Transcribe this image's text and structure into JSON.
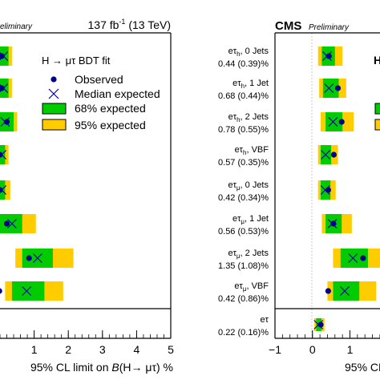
{
  "colors": {
    "band95": "#ffcc00",
    "band68": "#00cc00",
    "observed": "#00008b",
    "median": "#0000aa",
    "frame": "#000000"
  },
  "chart_data": [
    {
      "type": "scatter",
      "header_text": "Preliminary",
      "lumi_text": "137 fb",
      "lumi_sup": "-1",
      "lumi_energy": " (13 TeV)",
      "legend": {
        "title": "H → μτ BDT fit",
        "observed": "Observed",
        "median": "Median expected",
        "band68": "68% expected",
        "band95": "95% expected",
        "position": "top-right"
      },
      "xlabel_prefix": "95% CL limit on ",
      "xlabel_B": "B",
      "xlabel_suffix": "(H→ μτ) %",
      "xlim": [
        -0.4,
        5
      ],
      "ticks": [
        "1",
        "2",
        "3",
        "4",
        "5"
      ],
      "tick_values": [
        1,
        2,
        3,
        4,
        5
      ],
      "series": [
        {
          "observed": 0.05,
          "median": 0.1,
          "band68": [
            -0.1,
            0.25
          ],
          "band95": [
            -0.2,
            0.35
          ]
        },
        {
          "observed": 0.05,
          "median": 0.1,
          "band68": [
            -0.1,
            0.25
          ],
          "band95": [
            -0.2,
            0.35
          ]
        },
        {
          "observed": 0.2,
          "median": 0.15,
          "band68": [
            -0.1,
            0.4
          ],
          "band95": [
            -0.2,
            0.5
          ]
        },
        {
          "observed": 0.0,
          "median": 0.05,
          "band68": [
            -0.1,
            0.15
          ],
          "band95": [
            -0.2,
            0.25
          ]
        },
        {
          "observed": 0.0,
          "median": 0.05,
          "band68": [
            -0.1,
            0.15
          ],
          "band95": [
            -0.2,
            0.3
          ]
        },
        {
          "observed": 0.2,
          "median": 0.35,
          "band68": [
            -0.1,
            0.65
          ],
          "band95": [
            -0.2,
            1.05
          ]
        },
        {
          "observed": 0.85,
          "median": 1.1,
          "band68": [
            0.65,
            1.55
          ],
          "band95": [
            0.45,
            2.15
          ]
        },
        {
          "observed": -0.02,
          "median": 0.78,
          "band68": [
            0.35,
            1.3
          ],
          "band95": [
            0.15,
            1.85
          ]
        }
      ]
    },
    {
      "type": "scatter",
      "header_cms": "CMS",
      "header_text": "Preliminary",
      "xlabel": "95% CL",
      "xlim": [
        -1,
        5
      ],
      "ticks": [
        "−1",
        "0",
        "1",
        "2",
        "3"
      ],
      "tick_values": [
        -1,
        0,
        1,
        2,
        3
      ],
      "categories": [
        {
          "lepton": "eτ",
          "sub": "h",
          "name": ", 0 Jets",
          "value": "0.44 (0.39)%"
        },
        {
          "lepton": "eτ",
          "sub": "h",
          "name": ", 1 Jet",
          "value": "0.68 (0.44)%"
        },
        {
          "lepton": "eτ",
          "sub": "h",
          "name": ", 2 Jets",
          "value": "0.78 (0.55)%"
        },
        {
          "lepton": "eτ",
          "sub": "h",
          "name": ", VBF",
          "value": "0.57 (0.35)%"
        },
        {
          "lepton": "eτ",
          "sub": "μ",
          "name": ", 0 Jets",
          "value": "0.42 (0.34)%"
        },
        {
          "lepton": "eτ",
          "sub": "μ",
          "name": ", 1 Jet",
          "value": "0.56 (0.53)%"
        },
        {
          "lepton": "eτ",
          "sub": "μ",
          "name": ", 2 Jets",
          "value": "1.35 (1.08)%"
        },
        {
          "lepton": "eτ",
          "sub": "μ",
          "name": ", VBF",
          "value": "0.42 (0.86)%"
        },
        {
          "lepton": "eτ",
          "sub": "",
          "name": "",
          "value": "0.22 (0.16)%"
        }
      ],
      "series": [
        {
          "observed": 0.44,
          "median": 0.39,
          "band68": [
            0.25,
            0.6
          ],
          "band95": [
            0.15,
            0.8
          ]
        },
        {
          "observed": 0.68,
          "median": 0.44,
          "band68": [
            0.28,
            0.7
          ],
          "band95": [
            0.18,
            0.9
          ]
        },
        {
          "observed": 0.78,
          "median": 0.55,
          "band68": [
            0.35,
            0.8
          ],
          "band95": [
            0.22,
            1.1
          ]
        },
        {
          "observed": 0.57,
          "median": 0.35,
          "band68": [
            0.22,
            0.5
          ],
          "band95": [
            0.15,
            0.68
          ]
        },
        {
          "observed": 0.42,
          "median": 0.34,
          "band68": [
            0.22,
            0.48
          ],
          "band95": [
            0.15,
            0.62
          ]
        },
        {
          "observed": 0.56,
          "median": 0.53,
          "band68": [
            0.35,
            0.78
          ],
          "band95": [
            0.25,
            1.05
          ]
        },
        {
          "observed": 1.35,
          "median": 1.08,
          "band68": [
            0.75,
            1.48
          ],
          "band95": [
            0.55,
            1.9
          ]
        },
        {
          "observed": 0.42,
          "median": 0.86,
          "band68": [
            0.55,
            1.25
          ],
          "band95": [
            0.4,
            1.7
          ]
        },
        {
          "observed": 0.22,
          "median": 0.16,
          "band68": [
            0.1,
            0.24
          ],
          "band95": [
            0.05,
            0.32
          ]
        }
      ]
    }
  ]
}
